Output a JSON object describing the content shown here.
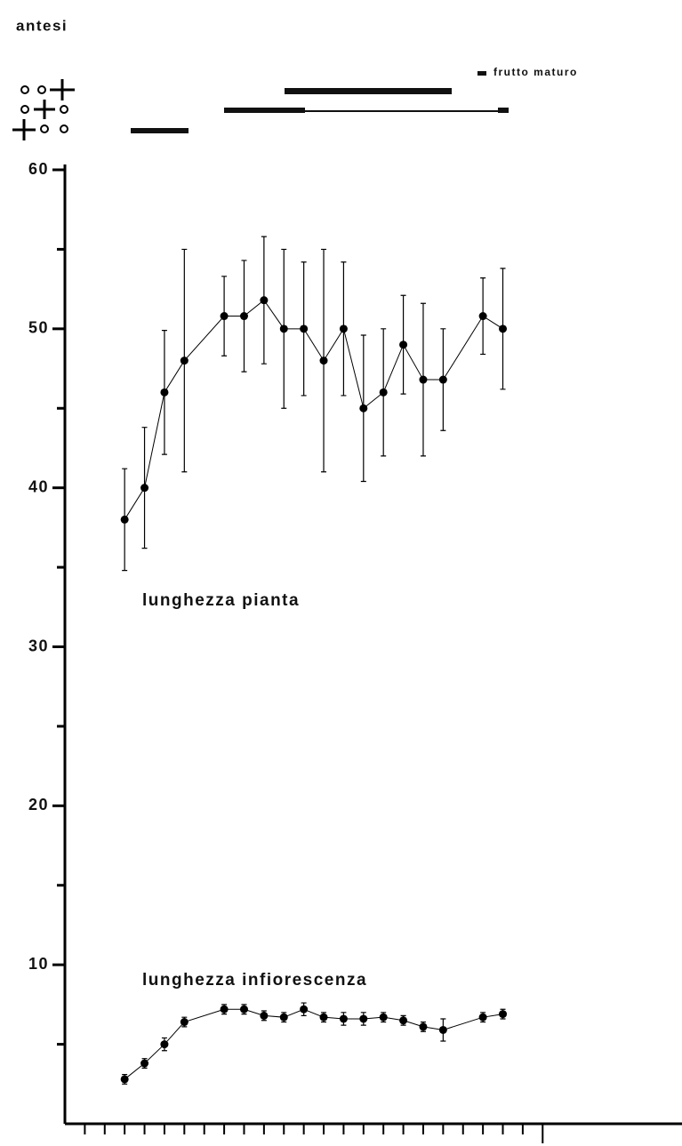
{
  "chart_data": {
    "type": "line",
    "annotations": {
      "phase_label": "antesi",
      "legend_mark": "frutto maturo"
    },
    "x": [
      3,
      4,
      5,
      6,
      8,
      9,
      10,
      11,
      12,
      13,
      14,
      15,
      16,
      17,
      18,
      19,
      21,
      22
    ],
    "series": [
      {
        "name": "lunghezza pianta",
        "color": "#000000",
        "values": [
          38,
          40,
          46,
          48,
          50.8,
          50.8,
          51.8,
          50,
          50,
          48,
          50,
          45,
          46,
          49,
          46.8,
          46.8,
          50.8,
          50
        ],
        "errors": [
          3.2,
          3.8,
          3.9,
          7,
          2.5,
          3.5,
          4,
          5,
          4.2,
          7,
          4.2,
          4.6,
          4,
          3.1,
          4.8,
          3.2,
          2.4,
          3.8
        ]
      },
      {
        "name": "lunghezza infiorescenza",
        "color": "#000000",
        "values": [
          2.8,
          3.8,
          5,
          6.4,
          7.2,
          7.2,
          6.8,
          6.7,
          7.2,
          6.7,
          6.6,
          6.6,
          6.7,
          6.5,
          6.1,
          5.9,
          6.7,
          6.9
        ],
        "errors": [
          0.3,
          0.3,
          0.4,
          0.3,
          0.3,
          0.3,
          0.3,
          0.3,
          0.4,
          0.3,
          0.4,
          0.4,
          0.3,
          0.3,
          0.3,
          0.7,
          0.3,
          0.3
        ]
      }
    ],
    "xlim": [
      0,
      31
    ],
    "xticks": [
      1,
      2,
      3,
      4,
      5,
      6,
      7,
      8,
      9,
      10,
      11,
      12,
      13,
      14,
      15,
      16,
      17,
      18,
      19,
      20,
      21,
      22,
      23,
      24
    ],
    "ylim": [
      0,
      60
    ],
    "yticks": [
      10,
      20,
      30,
      40,
      50,
      60
    ],
    "yminorticks": [
      5,
      15,
      25,
      35,
      45,
      55
    ]
  }
}
